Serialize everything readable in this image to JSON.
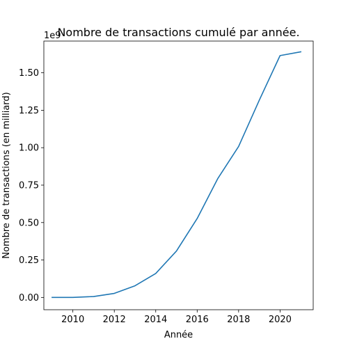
{
  "chart_data": {
    "type": "line",
    "title": "Nombre de transactions cumulé par année.",
    "xlabel": "Année",
    "ylabel": "Nombre de transactions (en milliard)",
    "y_offset_label": "1e9",
    "xlim": [
      2008.6,
      2021.6
    ],
    "ylim": [
      -82000000.0,
      1712000000.0
    ],
    "x_ticks": [
      2010,
      2012,
      2014,
      2016,
      2018,
      2020
    ],
    "x_tick_labels": [
      "2010",
      "2012",
      "2014",
      "2016",
      "2018",
      "2020"
    ],
    "y_ticks": [
      0,
      250000000.0,
      500000000.0,
      750000000.0,
      1000000000.0,
      1250000000.0,
      1500000000.0
    ],
    "y_tick_labels": [
      "0.00",
      "0.25",
      "0.50",
      "0.75",
      "1.00",
      "1.25",
      "1.50"
    ],
    "grid": false,
    "series": [
      {
        "color": "#1f77b4",
        "x": [
          2009,
          2010,
          2011,
          2012,
          2013,
          2014,
          2015,
          2016,
          2017,
          2018,
          2019,
          2020,
          2021
        ],
        "y": [
          0,
          200000.0,
          6000000.0,
          27000000.0,
          78000000.0,
          160000000.0,
          310000000.0,
          527000000.0,
          795000000.0,
          1008000000.0,
          1318000000.0,
          1615000000.0,
          1640000000.0
        ]
      }
    ]
  }
}
